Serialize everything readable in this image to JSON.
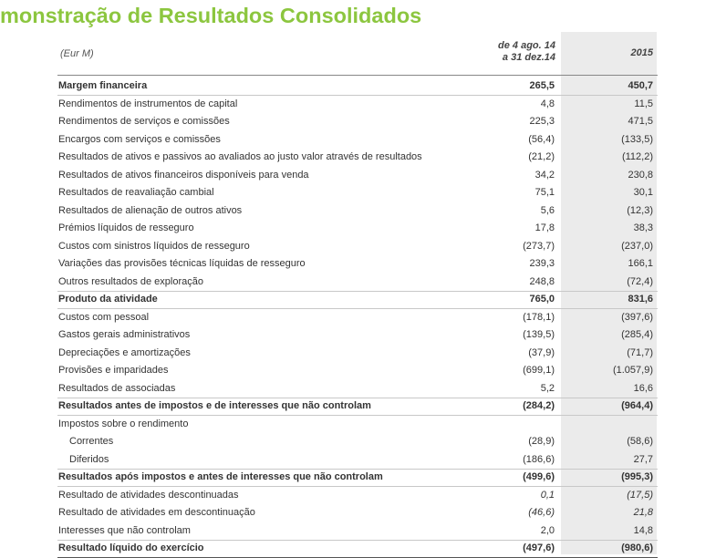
{
  "page": {
    "title": "monstração de Resultados Consolidados"
  },
  "table": {
    "header": {
      "unit": "(Eur M)",
      "col1_line1": "de 4 ago. 14",
      "col1_line2": "a 31 dez.14",
      "col2": "2015"
    },
    "rows": [
      {
        "label": "Margem financeira",
        "v1": "265,5",
        "v2": "450,7",
        "style": "bold"
      },
      {
        "label": "Rendimentos de instrumentos de capital",
        "v1": "4,8",
        "v2": "11,5"
      },
      {
        "label": "Rendimentos de serviços e comissões",
        "v1": "225,3",
        "v2": "471,5"
      },
      {
        "label": "Encargos com serviços e comissões",
        "v1": "(56,4)",
        "v2": "(133,5)"
      },
      {
        "label": "Resultados de ativos e passivos ao  avaliados ao justo valor através de resultados",
        "v1": "(21,2)",
        "v2": "(112,2)"
      },
      {
        "label": "Resultados de ativos financeiros disponíveis para venda",
        "v1": "34,2",
        "v2": "230,8"
      },
      {
        "label": "Resultados de reavaliação cambial",
        "v1": "75,1",
        "v2": "30,1"
      },
      {
        "label": "Resultados de alienação de outros ativos",
        "v1": "5,6",
        "v2": "(12,3)"
      },
      {
        "label": "Prémios líquidos de resseguro",
        "v1": "17,8",
        "v2": "38,3"
      },
      {
        "label": "Custos com sinistros líquidos de resseguro",
        "v1": "(273,7)",
        "v2": "(237,0)"
      },
      {
        "label": "Variações das provisões técnicas líquidas de resseguro",
        "v1": "239,3",
        "v2": "166,1"
      },
      {
        "label": "Outros resultados de exploração",
        "v1": "248,8",
        "v2": "(72,4)"
      },
      {
        "label": "Produto da atividade",
        "v1": "765,0",
        "v2": "831,6",
        "style": "bold"
      },
      {
        "label": "Custos com pessoal",
        "v1": "(178,1)",
        "v2": "(397,6)"
      },
      {
        "label": "Gastos gerais administrativos",
        "v1": "(139,5)",
        "v2": "(285,4)"
      },
      {
        "label": "Depreciações e amortizações",
        "v1": "(37,9)",
        "v2": "(71,7)"
      },
      {
        "label": "Provisões e imparidades",
        "v1": "(699,1)",
        "v2": "(1.057,9)"
      },
      {
        "label": "Resultados de associadas",
        "v1": "5,2",
        "v2": "16,6"
      },
      {
        "label": "Resultados antes de impostos e de interesses que não controlam",
        "v1": "(284,2)",
        "v2": "(964,4)",
        "style": "bold"
      },
      {
        "label": "Impostos sobre o rendimento",
        "v1": "",
        "v2": ""
      },
      {
        "label": "Correntes",
        "v1": "(28,9)",
        "v2": "(58,6)",
        "style": "indent"
      },
      {
        "label": "Diferidos",
        "v1": "(186,6)",
        "v2": "27,7",
        "style": "indent"
      },
      {
        "label": "Resultados após impostos e antes de interesses que não controlam",
        "v1": "(499,6)",
        "v2": "(995,3)",
        "style": "bold"
      },
      {
        "label": "Resultado de atividades descontinuadas",
        "v1": "0,1",
        "v2": "(17,5)",
        "style": "italic"
      },
      {
        "label": "Resultado de atividades em descontinuação",
        "v1": "(46,6)",
        "v2": "21,8",
        "style": "italic"
      },
      {
        "label": "Interesses que não controlam",
        "v1": "2,0",
        "v2": "14,8"
      },
      {
        "label": "Resultado líquido do exercício",
        "v1": "(497,6)",
        "v2": "(980,6)",
        "style": "bold"
      }
    ]
  },
  "colors": {
    "title": "#8cc63f",
    "column_shade": "#ebebeb",
    "text": "#333333"
  }
}
